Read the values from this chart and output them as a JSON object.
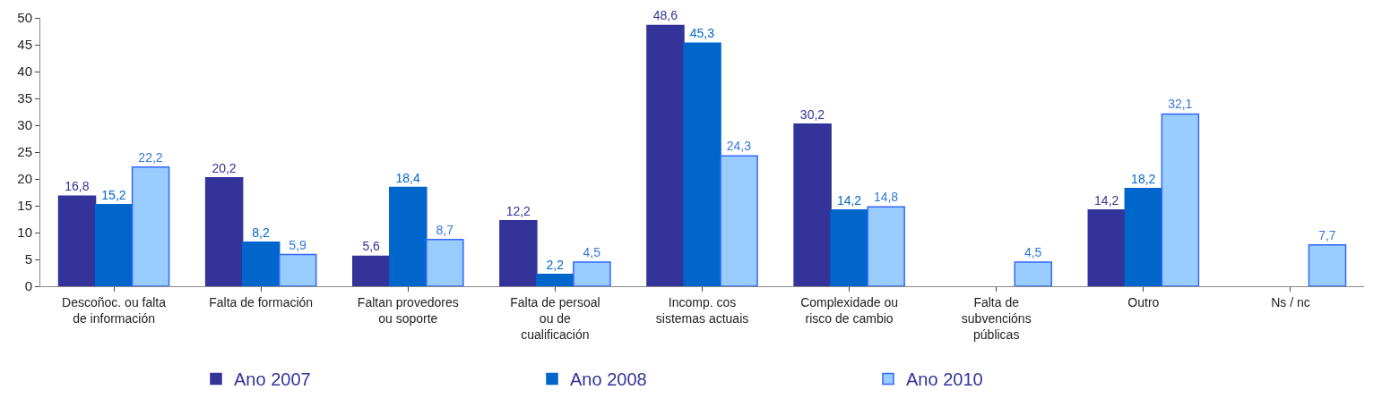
{
  "chart_data": {
    "type": "bar",
    "categories": [
      "Descoñoc. ou falta de información",
      "Falta de formación",
      "Faltan provedores ou soporte",
      "Falta de persoal ou de cualificación",
      "Incomp. cos sistemas actuais",
      "Complexidade ou risco de cambio",
      "Falta de subvencións públicas",
      "Outro",
      "Ns / nc"
    ],
    "series": [
      {
        "name": "Ano 2007",
        "color": "#333399",
        "values": [
          16.8,
          20.2,
          5.6,
          12.2,
          48.6,
          30.2,
          null,
          14.2,
          null
        ],
        "value_labels": [
          "16,8",
          "20,2",
          "5,6",
          "12,2",
          "48,6",
          "30,2",
          null,
          "14,2",
          null
        ]
      },
      {
        "name": "Ano 2008",
        "color": "#0066cc",
        "values": [
          15.2,
          8.2,
          18.4,
          2.2,
          45.3,
          14.2,
          null,
          18.2,
          null
        ],
        "value_labels": [
          "15,2",
          "8,2",
          "18,4",
          "2,2",
          "45,3",
          "14,2",
          null,
          "18,2",
          null
        ]
      },
      {
        "name": "Ano 2010",
        "color": "#99ccff",
        "values": [
          22.2,
          5.9,
          8.7,
          4.5,
          24.3,
          14.8,
          4.5,
          32.1,
          7.7
        ],
        "value_labels": [
          "22,2",
          "5,9",
          "8,7",
          "4,5",
          "24,3",
          "14,8",
          "4,5",
          "32,1",
          "7,7"
        ]
      }
    ],
    "ylim": [
      0,
      50
    ],
    "yticks": [
      0,
      5,
      10,
      15,
      20,
      25,
      30,
      35,
      40,
      45,
      50
    ],
    "grid": false,
    "legend": "bottom"
  }
}
